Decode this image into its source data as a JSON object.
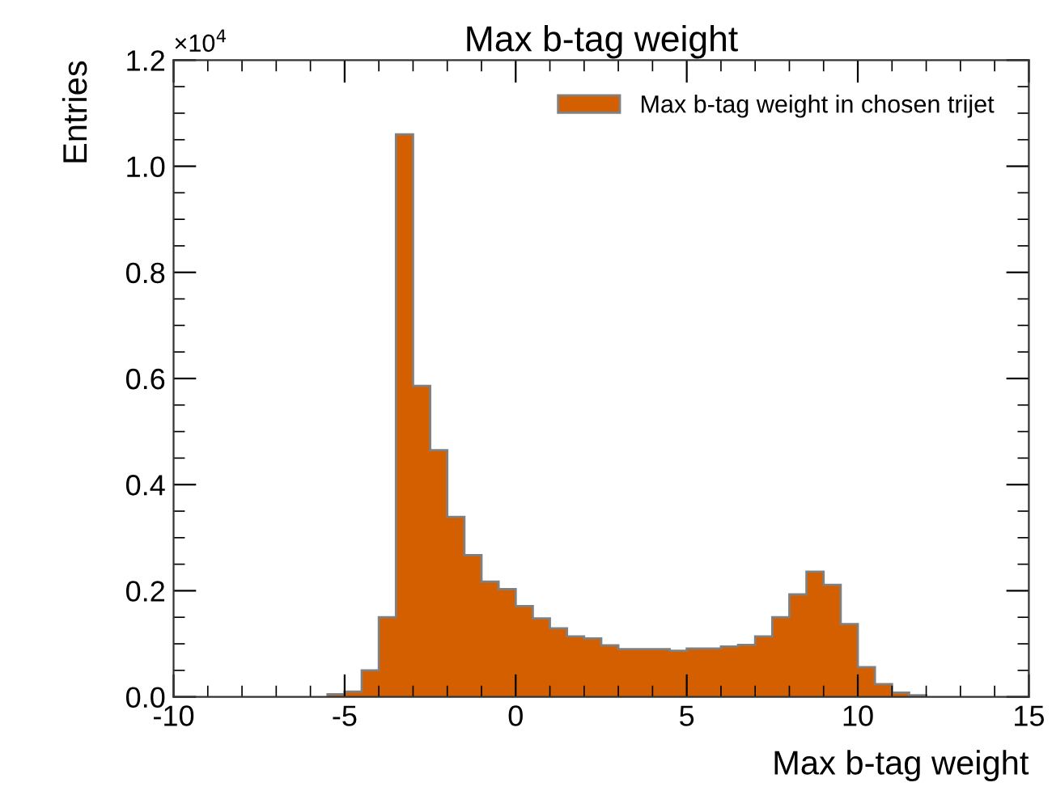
{
  "chart_data": {
    "type": "histogram",
    "title": "Max b-tag weight",
    "xlabel": "Max b-tag weight",
    "ylabel": "Entries",
    "annotations": [
      "×10$^{4}$"
    ],
    "bins": [
      -5.5,
      -5,
      -4.5,
      -4,
      -3.5,
      -3,
      -2.5,
      -2,
      -1.5,
      -1,
      -0.5,
      0,
      0.5,
      1,
      1.5,
      2,
      2.5,
      3,
      3.5,
      4,
      4.5,
      5,
      5.5,
      6,
      6.5,
      7,
      7.5,
      8,
      8.5,
      9,
      9.5,
      10,
      10.5,
      11,
      11.5,
      12
    ],
    "series": [
      {
        "name": "Max b-tag weight in chosen trijet",
        "color": "#d45f00",
        "values": [
          0.005,
          0.01,
          0.05,
          0.15,
          1.06,
          0.586,
          0.465,
          0.339,
          0.267,
          0.217,
          0.203,
          0.171,
          0.148,
          0.129,
          0.114,
          0.11,
          0.097,
          0.09,
          0.09,
          0.09,
          0.087,
          0.091,
          0.091,
          0.095,
          0.098,
          0.114,
          0.15,
          0.193,
          0.236,
          0.211,
          0.137,
          0.056,
          0.024,
          0.008,
          0.003
        ]
      }
    ],
    "xlim": [
      -10,
      15
    ],
    "xticks": [
      -10,
      -5,
      0,
      5,
      10,
      15
    ],
    "ylim": [
      0,
      1.2
    ],
    "yticks": [
      {
        "value": 0,
        "label": "0.0"
      },
      {
        "value": 0.2,
        "label": "0.2"
      },
      {
        "value": 0.4,
        "label": "0.4"
      },
      {
        "value": 0.6,
        "label": "0.6"
      },
      {
        "value": 0.8,
        "label": "0.8"
      },
      {
        "value": 1.0,
        "label": "1.0"
      },
      {
        "value": 1.2,
        "label": "1.2"
      }
    ],
    "legend": "top right",
    "grid": false
  }
}
